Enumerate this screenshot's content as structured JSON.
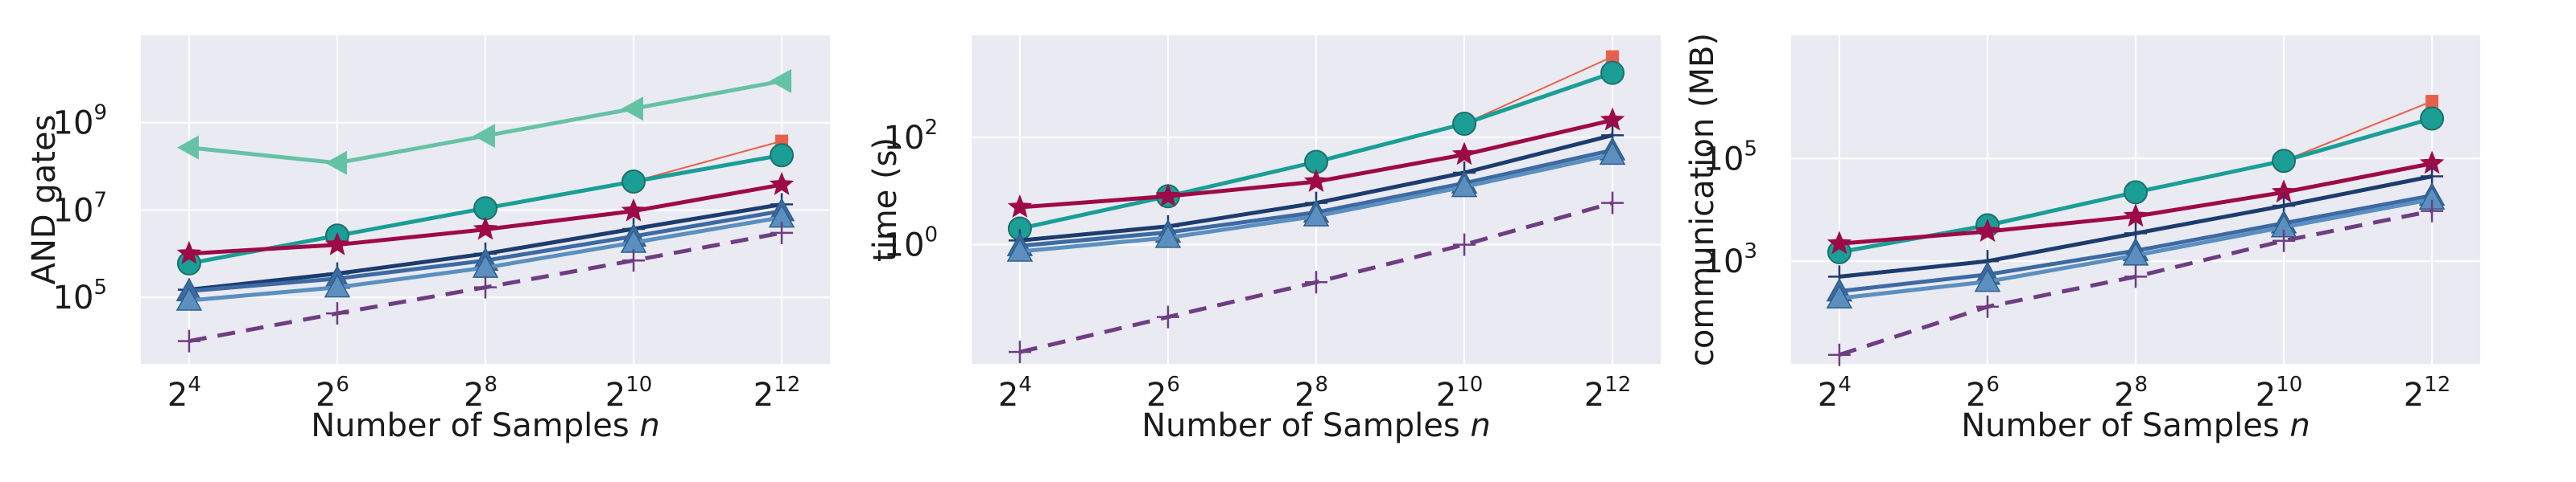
{
  "chart_data": [
    {
      "type": "line",
      "xlabel": "Number of Samples",
      "xlabel_var": "n",
      "ylabel": "AND gates",
      "xscale": "log2",
      "yscale": "log10",
      "ylim": [
        3000.0,
        100000000000.0
      ],
      "grid": true,
      "x": [
        16,
        64,
        256,
        1024,
        4096
      ],
      "x_ticks": [
        {
          "base": "2",
          "exp": "4"
        },
        {
          "base": "2",
          "exp": "6"
        },
        {
          "base": "2",
          "exp": "8"
        },
        {
          "base": "2",
          "exp": "10"
        },
        {
          "base": "2",
          "exp": "12"
        }
      ],
      "y_ticks": [
        {
          "value": 100000,
          "base": "10",
          "exp": "5"
        },
        {
          "value": 10000000,
          "base": "10",
          "exp": "7"
        },
        {
          "value": 1000000000,
          "base": "10",
          "exp": "9"
        }
      ],
      "series": [
        {
          "color": "#66c2a5",
          "marker": "triangle-left",
          "dash": "",
          "values": [
            270000000.0,
            120000000.0,
            500000000.0,
            2100000000.0,
            9000000000.0
          ]
        },
        {
          "color": "#e8604c",
          "marker": "square",
          "dash": "",
          "values": [
            600000.0,
            2600000.0,
            11000000.0,
            45000000.0,
            380000000.0
          ]
        },
        {
          "color": "#1a9e96",
          "marker": "circle",
          "dash": "",
          "values": [
            600000.0,
            2600000.0,
            11000000.0,
            45000000.0,
            180000000.0
          ]
        },
        {
          "color": "#9e0a47",
          "marker": "star",
          "dash": "",
          "values": [
            1000000.0,
            1600000.0,
            3600000.0,
            9500000.0,
            38000000.0
          ]
        },
        {
          "color": "#1d3c6e",
          "marker": "plus",
          "dash": "",
          "values": [
            150000.0,
            350000.0,
            1000000.0,
            3700000.0,
            13500000.0
          ]
        },
        {
          "color": "#3d6aa3",
          "marker": "triangle-up",
          "dash": "",
          "values": [
            140000.0,
            270000.0,
            700000.0,
            2500000.0,
            9500000.0
          ]
        },
        {
          "color": "#5b8fbf",
          "marker": "triangle-up",
          "dash": "",
          "values": [
            85000.0,
            170000.0,
            480000.0,
            1800000.0,
            6800000.0
          ]
        },
        {
          "color": "#6e3d82",
          "marker": "plus",
          "dash": "22 14",
          "values": [
            10000.0,
            43000.0,
            170000.0,
            700000.0,
            3000000.0
          ]
        }
      ]
    },
    {
      "type": "line",
      "xlabel": "Number of Samples",
      "xlabel_var": "n",
      "ylabel": "time (s)",
      "xscale": "log2",
      "yscale": "log10",
      "ylim": [
        0.006,
        8000
      ],
      "grid": true,
      "x": [
        16,
        64,
        256,
        1024,
        4096
      ],
      "x_ticks": [
        {
          "base": "2",
          "exp": "4"
        },
        {
          "base": "2",
          "exp": "6"
        },
        {
          "base": "2",
          "exp": "8"
        },
        {
          "base": "2",
          "exp": "10"
        },
        {
          "base": "2",
          "exp": "12"
        }
      ],
      "y_ticks": [
        {
          "value": 1,
          "base": "10",
          "exp": "0"
        },
        {
          "value": 100,
          "base": "10",
          "exp": "2"
        }
      ],
      "series": [
        {
          "color": "#e8604c",
          "marker": "square",
          "dash": "",
          "values": [
            2,
            8,
            35,
            180,
            3200
          ]
        },
        {
          "color": "#1a9e96",
          "marker": "circle",
          "dash": "",
          "values": [
            2,
            8,
            35,
            180,
            1600
          ]
        },
        {
          "color": "#9e0a47",
          "marker": "star",
          "dash": "",
          "values": [
            5,
            8,
            15,
            48,
            210
          ]
        },
        {
          "color": "#1d3c6e",
          "marker": "plus",
          "dash": "",
          "values": [
            1.2,
            2.2,
            6,
            22,
            110
          ]
        },
        {
          "color": "#3d6aa3",
          "marker": "triangle-up",
          "dash": "",
          "values": [
            0.95,
            1.7,
            4,
            14,
            58
          ]
        },
        {
          "color": "#5b8fbf",
          "marker": "triangle-up",
          "dash": "",
          "values": [
            0.75,
            1.35,
            3.4,
            12,
            48
          ]
        },
        {
          "color": "#6e3d82",
          "marker": "plus",
          "dash": "22 14",
          "values": [
            0.01,
            0.045,
            0.2,
            1,
            6
          ]
        }
      ]
    },
    {
      "type": "line",
      "xlabel": "Number of Samples",
      "xlabel_var": "n",
      "ylabel": "communication (MB)",
      "xscale": "log2",
      "yscale": "log10",
      "ylim": [
        10,
        25000000.0
      ],
      "grid": true,
      "x": [
        16,
        64,
        256,
        1024,
        4096
      ],
      "x_ticks": [
        {
          "base": "2",
          "exp": "4"
        },
        {
          "base": "2",
          "exp": "6"
        },
        {
          "base": "2",
          "exp": "8"
        },
        {
          "base": "2",
          "exp": "10"
        },
        {
          "base": "2",
          "exp": "12"
        }
      ],
      "y_ticks": [
        {
          "value": 1000,
          "base": "10",
          "exp": "3"
        },
        {
          "value": 100000,
          "base": "10",
          "exp": "5"
        }
      ],
      "series": [
        {
          "color": "#e8604c",
          "marker": "square",
          "dash": "",
          "values": [
            1500,
            5000,
            22000,
            90000,
            1300000.0
          ]
        },
        {
          "color": "#1a9e96",
          "marker": "circle",
          "dash": "",
          "values": [
            1500,
            5000,
            22000,
            90000,
            600000.0
          ]
        },
        {
          "color": "#9e0a47",
          "marker": "star",
          "dash": "",
          "values": [
            2200,
            3800,
            7500,
            22000,
            80000
          ]
        },
        {
          "color": "#1d3c6e",
          "marker": "plus",
          "dash": "",
          "values": [
            500,
            1000,
            3500,
            12000,
            45000
          ]
        },
        {
          "color": "#3d6aa3",
          "marker": "triangle-up",
          "dash": "",
          "values": [
            260,
            550,
            1600,
            5500,
            19000
          ]
        },
        {
          "color": "#5b8fbf",
          "marker": "triangle-up",
          "dash": "",
          "values": [
            190,
            400,
            1300,
            4600,
            16000
          ]
        },
        {
          "color": "#6e3d82",
          "marker": "plus",
          "dash": "22 14",
          "values": [
            15,
            130,
            500,
            2500,
            9500
          ]
        }
      ]
    }
  ]
}
